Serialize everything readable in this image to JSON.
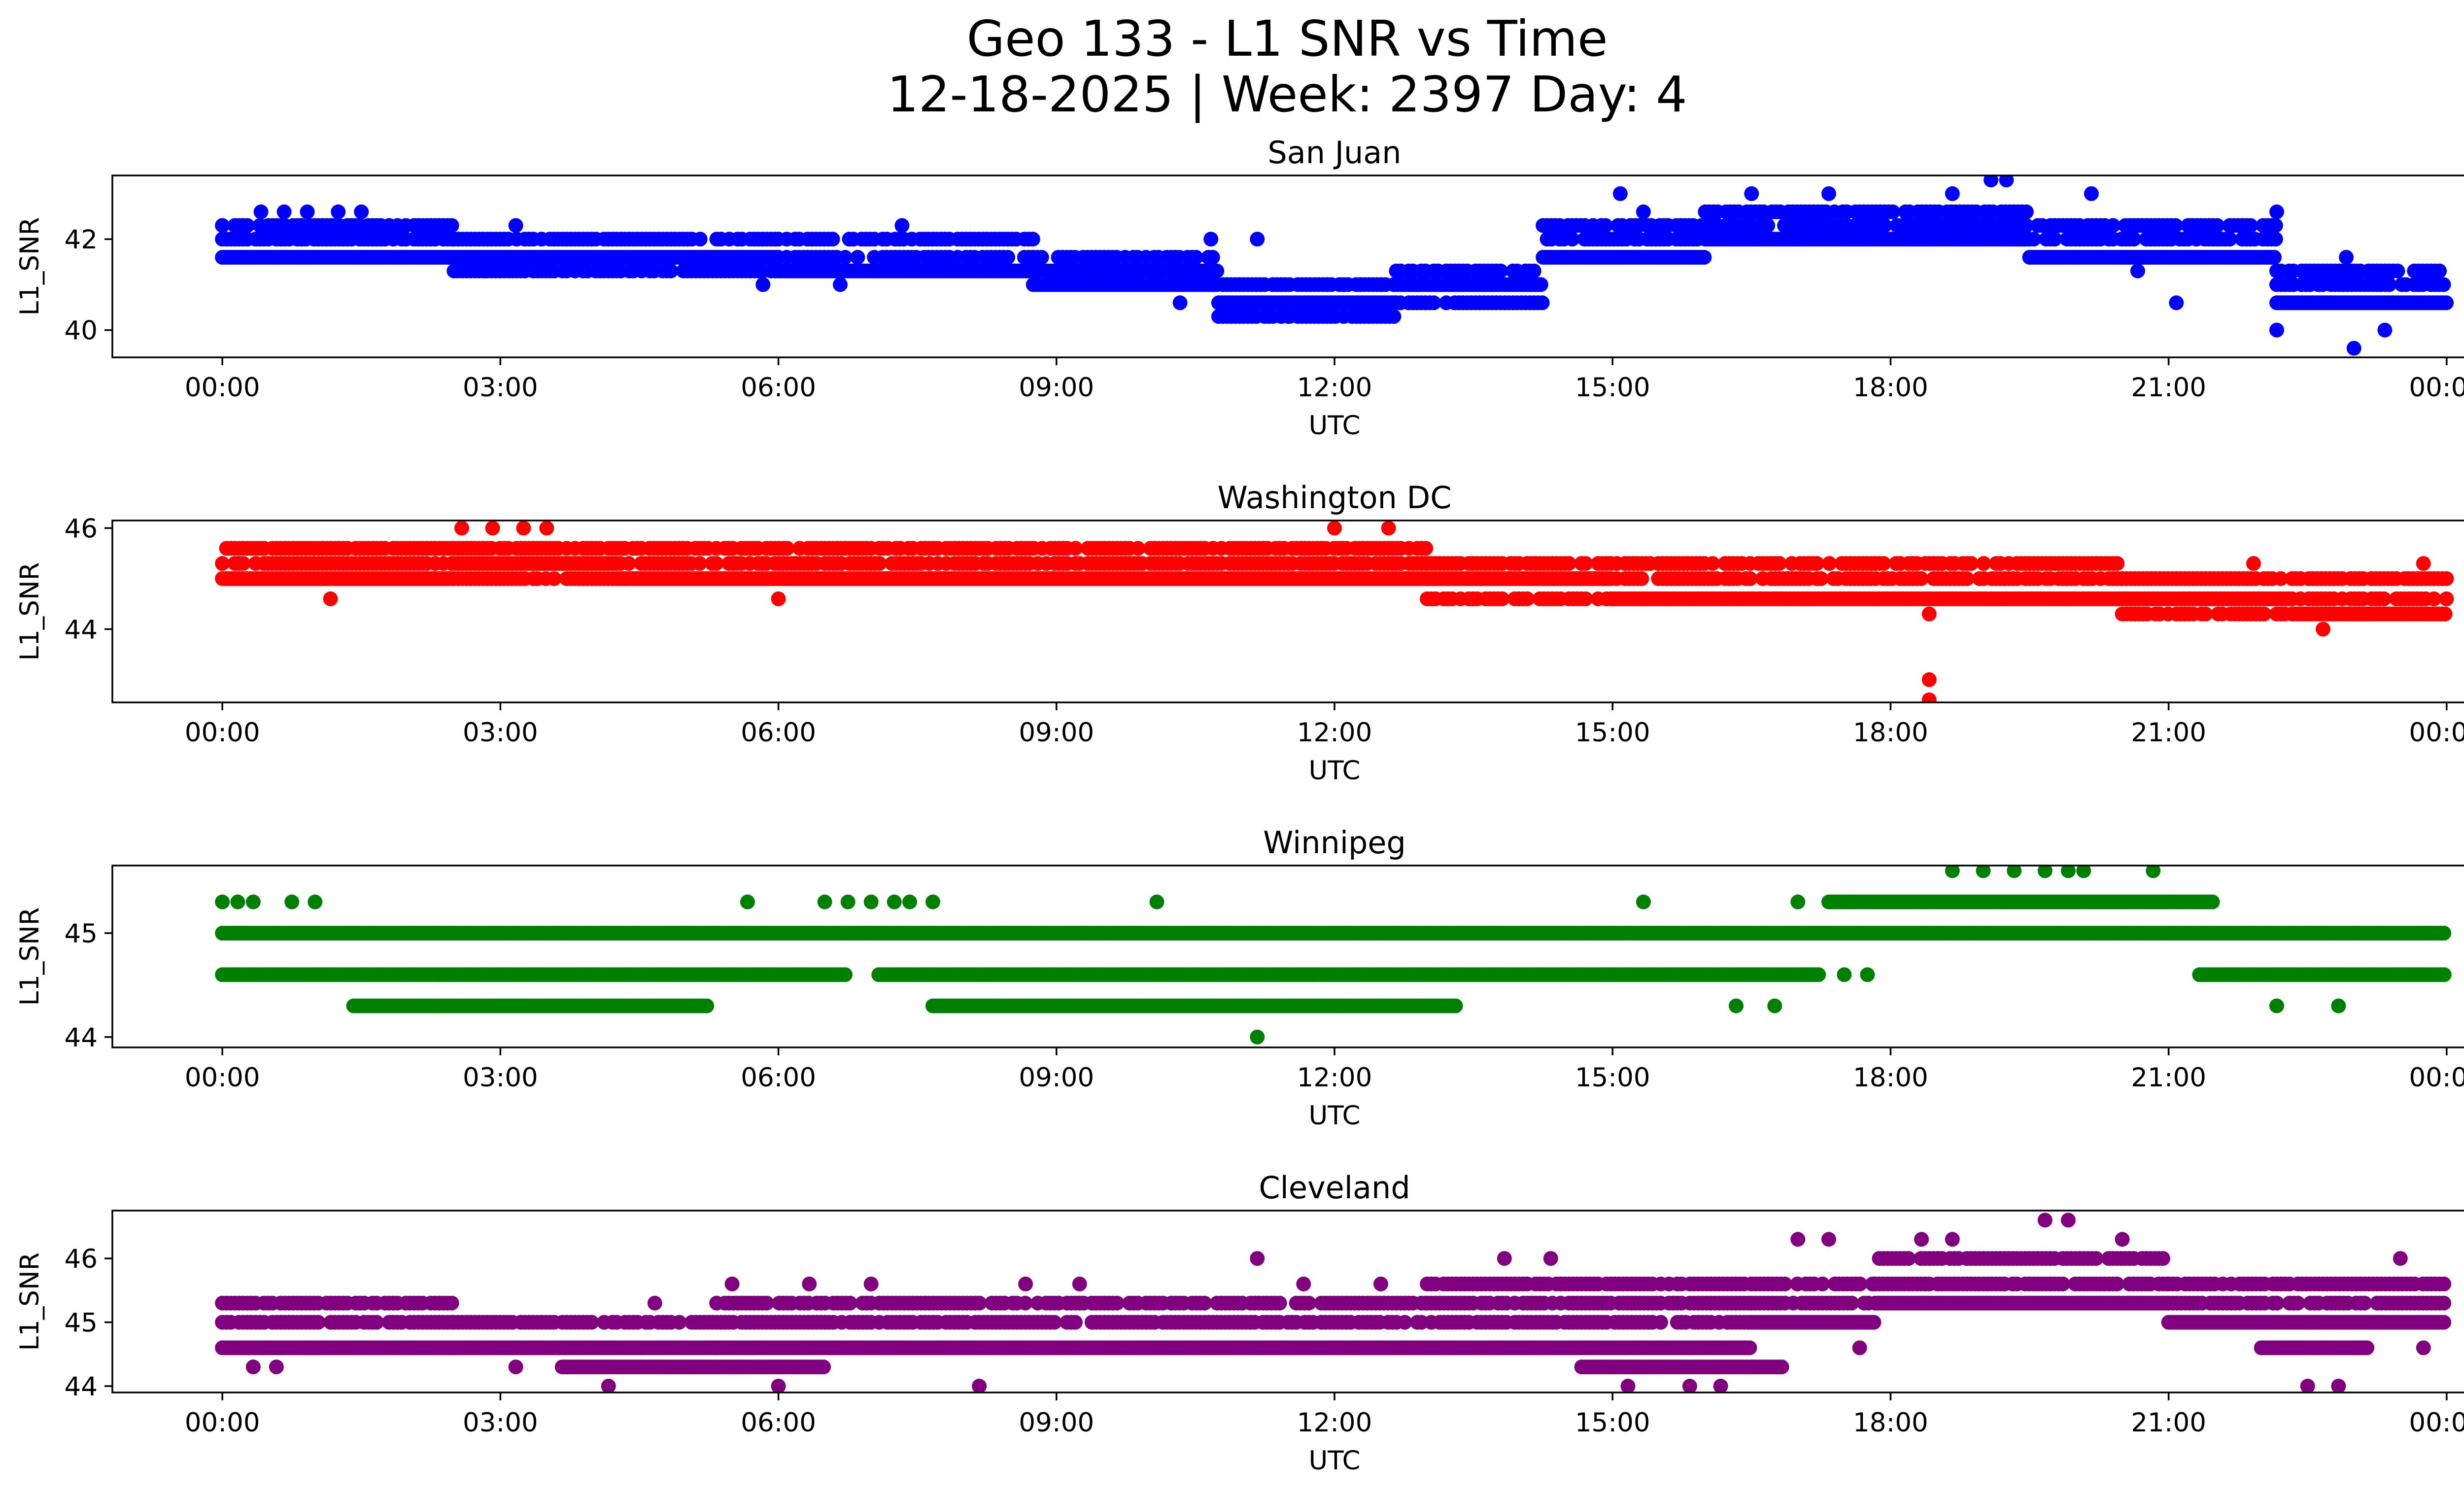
{
  "figure": {
    "title_line1": "Geo 133 - L1 SNR vs Time",
    "title_line2": "12-18-2025 | Week: 2397 Day: 4"
  },
  "chart_data": [
    {
      "type": "scatter",
      "title": "San Juan",
      "xlabel": "UTC",
      "ylabel": "L1_SNR",
      "color": "#0000ff",
      "xlim": [
        "00:00",
        "24:00"
      ],
      "ylim": [
        39.4,
        43.4
      ],
      "xticks": [
        "00:00",
        "03:00",
        "06:00",
        "09:00",
        "12:00",
        "15:00",
        "18:00",
        "21:00",
        "00:00"
      ],
      "yticks": [
        40,
        42
      ],
      "grid": false,
      "dense_bands": [
        {
          "start": "00:00",
          "end": "02:30",
          "values": [
            41.6,
            42.0,
            42.3
          ]
        },
        {
          "start": "02:30",
          "end": "06:00",
          "values": [
            41.6,
            42.0,
            41.3
          ]
        },
        {
          "start": "06:00",
          "end": "08:45",
          "values": [
            41.3,
            41.6,
            42.0
          ]
        },
        {
          "start": "08:45",
          "end": "10:45",
          "values": [
            41.0,
            41.3,
            41.6
          ]
        },
        {
          "start": "10:45",
          "end": "12:40",
          "values": [
            40.6,
            41.0,
            40.3
          ]
        },
        {
          "start": "12:40",
          "end": "14:15",
          "values": [
            41.0,
            41.3,
            40.6
          ]
        },
        {
          "start": "14:15",
          "end": "16:00",
          "values": [
            41.6,
            42.0,
            42.3
          ]
        },
        {
          "start": "16:00",
          "end": "19:30",
          "values": [
            42.0,
            42.3,
            42.6
          ]
        },
        {
          "start": "19:30",
          "end": "22:10",
          "values": [
            41.6,
            42.0,
            42.3
          ]
        },
        {
          "start": "22:10",
          "end": "24:00",
          "values": [
            40.6,
            41.0,
            41.3
          ]
        }
      ],
      "points": [
        [
          "00:25",
          42.6
        ],
        [
          "00:40",
          42.6
        ],
        [
          "00:55",
          42.6
        ],
        [
          "01:15",
          42.6
        ],
        [
          "01:30",
          42.6
        ],
        [
          "02:50",
          41.3
        ],
        [
          "03:10",
          42.3
        ],
        [
          "07:20",
          42.3
        ],
        [
          "05:50",
          41.0
        ],
        [
          "06:40",
          41.0
        ],
        [
          "10:20",
          40.6
        ],
        [
          "10:40",
          42.0
        ],
        [
          "11:10",
          42.0
        ],
        [
          "11:30",
          40.3
        ],
        [
          "15:05",
          43.0
        ],
        [
          "15:20",
          42.6
        ],
        [
          "16:30",
          43.0
        ],
        [
          "17:20",
          43.0
        ],
        [
          "18:40",
          43.0
        ],
        [
          "19:05",
          43.3
        ],
        [
          "19:15",
          43.3
        ],
        [
          "20:10",
          43.0
        ],
        [
          "20:40",
          41.3
        ],
        [
          "21:05",
          40.6
        ],
        [
          "22:10",
          42.6
        ],
        [
          "22:10",
          40.0
        ],
        [
          "23:00",
          39.6
        ],
        [
          "23:20",
          40.0
        ],
        [
          "22:55",
          41.6
        ]
      ]
    },
    {
      "type": "scatter",
      "title": "Washington DC",
      "xlabel": "UTC",
      "ylabel": "L1_SNR",
      "color": "#ff0000",
      "xlim": [
        "00:00",
        "24:00"
      ],
      "ylim": [
        42.55,
        46.15
      ],
      "xticks": [
        "00:00",
        "03:00",
        "06:00",
        "09:00",
        "12:00",
        "15:00",
        "18:00",
        "21:00",
        "00:00"
      ],
      "yticks": [
        44,
        46
      ],
      "grid": false,
      "dense_bands": [
        {
          "start": "00:00",
          "end": "02:30",
          "values": [
            45.0,
            45.3,
            45.6
          ]
        },
        {
          "start": "02:30",
          "end": "04:15",
          "values": [
            45.3,
            45.6,
            45.0
          ]
        },
        {
          "start": "04:15",
          "end": "07:00",
          "values": [
            45.0,
            45.3,
            45.6
          ]
        },
        {
          "start": "07:00",
          "end": "13:00",
          "values": [
            45.0,
            45.3,
            45.6
          ]
        },
        {
          "start": "13:00",
          "end": "15:00",
          "values": [
            45.0,
            45.3,
            44.6
          ]
        },
        {
          "start": "15:00",
          "end": "20:30",
          "values": [
            44.6,
            45.0,
            45.3
          ]
        },
        {
          "start": "20:30",
          "end": "22:20",
          "values": [
            44.6,
            45.0,
            44.3
          ]
        },
        {
          "start": "22:20",
          "end": "24:00",
          "values": [
            44.3,
            44.6,
            45.0
          ]
        }
      ],
      "points": [
        [
          "01:10",
          44.6
        ],
        [
          "02:35",
          46.0
        ],
        [
          "02:55",
          46.0
        ],
        [
          "03:15",
          46.0
        ],
        [
          "03:30",
          46.0
        ],
        [
          "06:00",
          44.6
        ],
        [
          "12:00",
          46.0
        ],
        [
          "12:35",
          46.0
        ],
        [
          "18:25",
          44.3
        ],
        [
          "18:25",
          43.0
        ],
        [
          "18:25",
          42.6
        ],
        [
          "21:55",
          45.3
        ],
        [
          "22:40",
          44.0
        ],
        [
          "23:45",
          45.3
        ]
      ]
    },
    {
      "type": "scatter",
      "title": "Winnipeg",
      "xlabel": "UTC",
      "ylabel": "L1_SNR",
      "color": "#008000",
      "xlim": [
        "00:00",
        "24:00"
      ],
      "ylim": [
        43.9,
        45.65
      ],
      "xticks": [
        "00:00",
        "03:00",
        "06:00",
        "09:00",
        "12:00",
        "15:00",
        "18:00",
        "21:00",
        "00:00"
      ],
      "yticks": [
        44,
        45
      ],
      "grid": false,
      "dense_bands": [
        {
          "start": "00:00",
          "end": "24:00",
          "values": [
            45.0
          ]
        },
        {
          "start": "00:00",
          "end": "06:45",
          "values": [
            44.6
          ]
        },
        {
          "start": "07:05",
          "end": "17:15",
          "values": [
            44.6
          ]
        },
        {
          "start": "21:20",
          "end": "24:00",
          "values": [
            44.6
          ]
        },
        {
          "start": "01:25",
          "end": "05:15",
          "values": [
            44.3
          ]
        },
        {
          "start": "07:40",
          "end": "13:20",
          "values": [
            44.3
          ]
        },
        {
          "start": "17:20",
          "end": "21:30",
          "values": [
            45.3
          ]
        }
      ],
      "points": [
        [
          "00:00",
          45.3
        ],
        [
          "00:10",
          45.3
        ],
        [
          "00:20",
          45.3
        ],
        [
          "00:45",
          45.3
        ],
        [
          "01:00",
          45.3
        ],
        [
          "05:40",
          45.3
        ],
        [
          "06:30",
          45.3
        ],
        [
          "06:45",
          45.3
        ],
        [
          "07:00",
          45.3
        ],
        [
          "07:15",
          45.3
        ],
        [
          "07:25",
          45.3
        ],
        [
          "07:40",
          45.3
        ],
        [
          "10:05",
          45.3
        ],
        [
          "15:20",
          45.3
        ],
        [
          "17:00",
          45.3
        ],
        [
          "18:40",
          45.6
        ],
        [
          "19:00",
          45.6
        ],
        [
          "19:20",
          45.6
        ],
        [
          "19:40",
          45.6
        ],
        [
          "19:55",
          45.6
        ],
        [
          "20:05",
          45.6
        ],
        [
          "20:50",
          45.6
        ],
        [
          "11:10",
          44.0
        ],
        [
          "16:20",
          44.3
        ],
        [
          "16:45",
          44.3
        ],
        [
          "17:30",
          44.6
        ],
        [
          "17:45",
          44.6
        ],
        [
          "22:10",
          44.3
        ],
        [
          "22:50",
          44.3
        ]
      ]
    },
    {
      "type": "scatter",
      "title": "Cleveland",
      "xlabel": "UTC",
      "ylabel": "L1_SNR",
      "color": "#800080",
      "xlim": [
        "00:00",
        "24:00"
      ],
      "ylim": [
        43.9,
        46.75
      ],
      "xticks": [
        "00:00",
        "03:00",
        "06:00",
        "09:00",
        "12:00",
        "15:00",
        "18:00",
        "21:00",
        "00:00"
      ],
      "yticks": [
        44,
        45,
        46
      ],
      "grid": false,
      "dense_bands": [
        {
          "start": "00:00",
          "end": "02:30",
          "values": [
            44.6,
            45.0,
            45.3
          ]
        },
        {
          "start": "02:30",
          "end": "05:20",
          "values": [
            44.6,
            45.0
          ]
        },
        {
          "start": "05:20",
          "end": "13:00",
          "values": [
            44.6,
            45.0,
            45.3
          ]
        },
        {
          "start": "13:00",
          "end": "16:30",
          "values": [
            44.6,
            45.0,
            45.3,
            45.6
          ]
        },
        {
          "start": "16:30",
          "end": "17:50",
          "values": [
            45.0,
            45.3,
            45.6
          ]
        },
        {
          "start": "17:50",
          "end": "21:00",
          "values": [
            45.3,
            45.6,
            46.0
          ]
        },
        {
          "start": "21:00",
          "end": "24:00",
          "values": [
            45.0,
            45.3,
            45.6
          ]
        },
        {
          "start": "22:00",
          "end": "23:10",
          "values": [
            44.6
          ]
        },
        {
          "start": "03:40",
          "end": "06:30",
          "values": [
            44.3
          ]
        },
        {
          "start": "14:40",
          "end": "16:50",
          "values": [
            44.3
          ]
        }
      ],
      "points": [
        [
          "00:20",
          44.3
        ],
        [
          "00:35",
          44.3
        ],
        [
          "03:10",
          44.3
        ],
        [
          "04:10",
          44.0
        ],
        [
          "04:40",
          45.3
        ],
        [
          "05:30",
          45.6
        ],
        [
          "06:00",
          44.0
        ],
        [
          "06:20",
          45.6
        ],
        [
          "07:00",
          45.6
        ],
        [
          "08:10",
          44.0
        ],
        [
          "08:40",
          45.6
        ],
        [
          "09:15",
          45.6
        ],
        [
          "11:10",
          46.0
        ],
        [
          "11:40",
          45.6
        ],
        [
          "12:30",
          45.6
        ],
        [
          "13:50",
          46.0
        ],
        [
          "14:20",
          46.0
        ],
        [
          "15:10",
          44.0
        ],
        [
          "15:50",
          44.0
        ],
        [
          "16:10",
          44.0
        ],
        [
          "17:00",
          46.3
        ],
        [
          "17:20",
          46.3
        ],
        [
          "17:40",
          44.6
        ],
        [
          "18:20",
          46.3
        ],
        [
          "18:40",
          46.3
        ],
        [
          "19:40",
          46.6
        ],
        [
          "19:55",
          46.6
        ],
        [
          "20:30",
          46.3
        ],
        [
          "22:30",
          44.0
        ],
        [
          "22:50",
          44.0
        ],
        [
          "23:45",
          44.6
        ],
        [
          "23:30",
          46.0
        ]
      ]
    }
  ]
}
